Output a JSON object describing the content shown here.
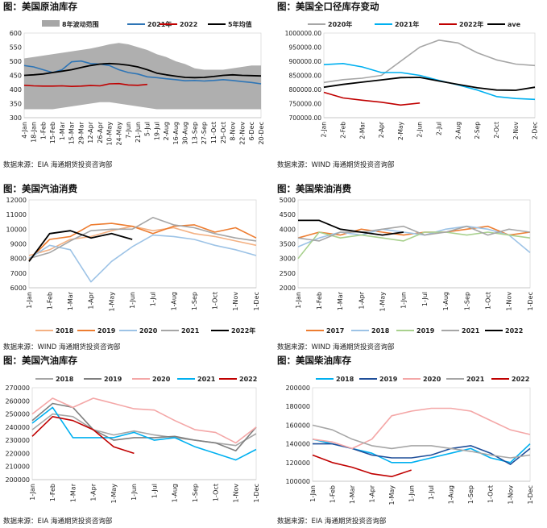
{
  "colors": {
    "gray": "#A6A6A6",
    "darkgray": "#7F7F7F",
    "blue": "#2E75B6",
    "red": "#C00000",
    "black": "#000000",
    "cyan": "#00B0F0",
    "orange": "#ED7D31",
    "lightorange": "#F4B183",
    "lightblue": "#9DC3E6",
    "lightgreen": "#A9D18E",
    "pink": "#F4A7A7",
    "darkblue": "#1F4E99",
    "band": "#A6A6A6"
  },
  "panels": [
    {
      "title": "图：美国原油库存",
      "source": "数据来源：EIA   海通期货投资咨询部",
      "chart_data": {
        "type": "line",
        "x": [
          "4-Jan",
          "18-Jan",
          "1-Feb",
          "15-Feb",
          "1-Mar",
          "15-Mar",
          "29-Mar",
          "12-Apr",
          "26-Apr",
          "10-May",
          "24-May",
          "7-Jun",
          "21-Jun",
          "5-Jul",
          "19-Jul",
          "2-Aug",
          "16-Aug",
          "30-Aug",
          "13-Sep",
          "27-Sep",
          "11-Oct",
          "25-Oct",
          "8-Nov",
          "22-Nov",
          "6-Dec",
          "20-Dec"
        ],
        "ylim": [
          300,
          600
        ],
        "yticks": [
          "300",
          "350",
          "400",
          "450",
          "500",
          "550",
          "600"
        ],
        "band": {
          "name": "8年波动范围",
          "upper": [
            510,
            515,
            520,
            525,
            530,
            535,
            540,
            545,
            552,
            560,
            565,
            560,
            550,
            540,
            525,
            515,
            500,
            490,
            475,
            470,
            470,
            470,
            475,
            480,
            485,
            485
          ],
          "lower": [
            330,
            330,
            330,
            330,
            335,
            340,
            345,
            350,
            355,
            355,
            350,
            345,
            340,
            335,
            330,
            330,
            330,
            330,
            330,
            330,
            330,
            330,
            330,
            330,
            330,
            330
          ]
        },
        "series": [
          {
            "name": "2021年",
            "color": "blue",
            "values": [
              485,
              480,
              470,
              460,
              470,
              498,
              501,
              492,
              490,
              485,
              470,
              460,
              455,
              445,
              442,
              438,
              435,
              431,
              432,
              430,
              432,
              435,
              432,
              428,
              425,
              420
            ]
          },
          {
            "name": "2022",
            "color": "red",
            "values": [
              415,
              413,
              412,
              412,
              413,
              411,
              412,
              414,
              413,
              420,
              421,
              416,
              415,
              418,
              null,
              null,
              null,
              null,
              null,
              null,
              null,
              null,
              null,
              null,
              null,
              null
            ]
          },
          {
            "name": "5年均值",
            "color": "black",
            "values": [
              450,
              452,
              455,
              460,
              465,
              470,
              478,
              485,
              490,
              492,
              490,
              486,
              480,
              470,
              458,
              452,
              447,
              443,
              442,
              443,
              446,
              450,
              452,
              450,
              449,
              448
            ]
          }
        ]
      }
    },
    {
      "title": "图：美国全口径库存变动",
      "source": "数据来源：WIND   海通期货投资咨询部",
      "chart_data": {
        "type": "line",
        "x": [
          "2-Jan",
          "2-Feb",
          "2-Mar",
          "2-Apr",
          "2-May",
          "2-Jun",
          "2-Jul",
          "2-Aug",
          "2-Sep",
          "2-Oct",
          "2-Nov",
          "2-Dec"
        ],
        "ylim": [
          700000,
          1000000
        ],
        "yticks": [
          "700000.00",
          "750000.00",
          "800000.00",
          "850000.00",
          "900000.00",
          "950000.00",
          "1000000.00"
        ],
        "series": [
          {
            "name": "2020年",
            "color": "gray",
            "values": [
              825000,
              835000,
              840000,
              850000,
              900000,
              950000,
              975000,
              965000,
              930000,
              905000,
              890000,
              885000
            ]
          },
          {
            "name": "2021年",
            "color": "cyan",
            "values": [
              888000,
              892000,
              880000,
              860000,
              860000,
              850000,
              832000,
              816000,
              798000,
              775000,
              768000,
              765000
            ]
          },
          {
            "name": "2022年",
            "color": "red",
            "values": [
              790000,
              770000,
              762000,
              755000,
              745000,
              752000,
              null,
              null,
              null,
              null,
              null,
              null
            ]
          },
          {
            "name": "ave",
            "color": "black",
            "values": [
              808000,
              818000,
              826000,
              834000,
              842000,
              843000,
              830000,
              818000,
              806000,
              798000,
              797000,
              808000
            ]
          }
        ]
      }
    },
    {
      "title": "图：美国汽油消费",
      "source": "数据来源：WIND   海通期货投资咨询部",
      "chart_data": {
        "type": "line",
        "x": [
          "1-Jan",
          "1-Feb",
          "1-Mar",
          "1-Apr",
          "1-May",
          "1-Jun",
          "1-Jul",
          "1-Aug",
          "1-Sep",
          "1-Oct",
          "1-Nov",
          "1-Dec"
        ],
        "ylim": [
          6000,
          12000
        ],
        "yticks": [
          "6000",
          "7000",
          "8000",
          "9000",
          "10000",
          "11000",
          "12000"
        ],
        "series": [
          {
            "name": "2018",
            "color": "lightorange",
            "values": [
              8200,
              8600,
              9300,
              9500,
              9900,
              10200,
              9900,
              10100,
              9700,
              9500,
              9200,
              8900
            ]
          },
          {
            "name": "2019",
            "color": "orange",
            "values": [
              7900,
              9300,
              9500,
              10300,
              10400,
              10200,
              9700,
              10200,
              10300,
              9800,
              10100,
              9400
            ]
          },
          {
            "name": "2020",
            "color": "lightblue",
            "values": [
              8000,
              8900,
              8600,
              6400,
              7800,
              8800,
              9600,
              9500,
              9300,
              8900,
              8600,
              8200
            ]
          },
          {
            "name": "2021",
            "color": "gray",
            "values": [
              8000,
              8400,
              9200,
              9900,
              10000,
              10000,
              10800,
              10300,
              10100,
              9700,
              9400,
              9200
            ]
          },
          {
            "name": "2022年",
            "color": "black",
            "values": [
              7800,
              9700,
              9900,
              9400,
              9700,
              9300,
              null,
              null,
              null,
              null,
              null,
              null
            ]
          }
        ]
      }
    },
    {
      "title": "图：美国柴油消费",
      "source": "数据来源：WIND   海通期货投资咨询部",
      "chart_data": {
        "type": "line",
        "x": [
          "1-Jan",
          "1-Feb",
          "1-Mar",
          "1-Apr",
          "1-May",
          "1-Jun",
          "1-Jul",
          "1-Aug",
          "1-Sep",
          "1-Oct",
          "1-Nov",
          "1-Dec"
        ],
        "ylim": [
          2000,
          5000
        ],
        "yticks": [
          "2000",
          "2500",
          "3000",
          "3500",
          "4000",
          "4500",
          "5000"
        ],
        "series": [
          {
            "name": "2017",
            "color": "orange",
            "values": [
              3700,
              3900,
              3800,
              4000,
              3900,
              3800,
              3900,
              3900,
              4000,
              4100,
              3800,
              3900
            ]
          },
          {
            "name": "2018",
            "color": "lightblue",
            "values": [
              3400,
              3700,
              3900,
              3800,
              4000,
              3900,
              3800,
              4000,
              4100,
              4000,
              3800,
              3200
            ]
          },
          {
            "name": "2019",
            "color": "lightgreen",
            "values": [
              3000,
              3900,
              3700,
              3800,
              3700,
              3600,
              3900,
              3900,
              3800,
              3900,
              3800,
              3700
            ]
          },
          {
            "name": "2021",
            "color": "gray",
            "values": [
              3700,
              3600,
              3900,
              3900,
              4000,
              4100,
              3800,
              3900,
              4100,
              3800,
              4000,
              3900
            ]
          },
          {
            "name": "2022",
            "color": "black",
            "values": [
              4300,
              4300,
              4000,
              3900,
              3800,
              3900,
              null,
              null,
              null,
              null,
              null,
              null
            ]
          }
        ]
      }
    },
    {
      "title": "图：美国汽油库存",
      "source": "数据来源：EIA   海通期货投资咨询部",
      "chart_data": {
        "type": "line",
        "x": [
          "1-Jan",
          "1-Feb",
          "1-Mar",
          "1-Apr",
          "1-May",
          "1-Jun",
          "1-Jul",
          "1-Aug",
          "1-Sep",
          "1-Oct",
          "1-Nov",
          "1-Dec"
        ],
        "ylim": [
          200000,
          270000
        ],
        "yticks": [
          "200000",
          "210000",
          "220000",
          "230000",
          "240000",
          "250000",
          "260000",
          "270000"
        ],
        "series": [
          {
            "name": "2018",
            "color": "gray",
            "values": [
              238000,
              250000,
              248000,
              238000,
              234000,
              237000,
              234000,
              232000,
              230000,
              228000,
              226000,
              235000
            ]
          },
          {
            "name": "2019",
            "color": "darkgray",
            "values": [
              245000,
              258000,
              255000,
              238000,
              230000,
              232000,
              232000,
              233000,
              230000,
              228000,
              222000,
              240000
            ]
          },
          {
            "name": "2020",
            "color": "pink",
            "values": [
              250000,
              262000,
              255000,
              262000,
              258000,
              254000,
              253000,
              245000,
              238000,
              236000,
              228000,
              240000
            ]
          },
          {
            "name": "2021",
            "color": "cyan",
            "values": [
              243000,
              255000,
              232000,
              232000,
              232000,
              236000,
              230000,
              232000,
              225000,
              220000,
              215000,
              223000
            ]
          },
          {
            "name": "2022",
            "color": "red",
            "values": [
              233000,
              248000,
              245000,
              238000,
              225000,
              220000,
              null,
              null,
              null,
              null,
              null,
              null
            ]
          }
        ]
      }
    },
    {
      "title": "图：美国柴油库存",
      "source": "数据来源：EIA   海通期货投资咨询部",
      "chart_data": {
        "type": "line",
        "x": [
          "1-Jan",
          "1-Feb",
          "1-Mar",
          "1-Apr",
          "1-May",
          "1-Jun",
          "1-Jul",
          "1-Aug",
          "1-Sep",
          "1-Oct",
          "1-Nov",
          "1-Dec"
        ],
        "ylim": [
          100000,
          200000
        ],
        "yticks": [
          "100000",
          "120000",
          "140000",
          "160000",
          "180000",
          "200000"
        ],
        "series": [
          {
            "name": "2018",
            "color": "cyan",
            "values": [
              145000,
              140000,
              135000,
              130000,
              120000,
              120000,
              125000,
              130000,
              135000,
              125000,
              120000,
              140000
            ]
          },
          {
            "name": "2019",
            "color": "darkblue",
            "values": [
              140000,
              140000,
              135000,
              128000,
              125000,
              125000,
              128000,
              135000,
              138000,
              130000,
              118000,
              135000
            ]
          },
          {
            "name": "2020",
            "color": "pink",
            "values": [
              145000,
              142000,
              135000,
              145000,
              170000,
              175000,
              178000,
              178000,
              175000,
              165000,
              155000,
              150000
            ]
          },
          {
            "name": "2021",
            "color": "gray",
            "values": [
              160000,
              155000,
              145000,
              138000,
              135000,
              138000,
              138000,
              135000,
              132000,
              128000,
              125000,
              128000
            ]
          },
          {
            "name": "2022",
            "color": "red",
            "values": [
              128000,
              120000,
              115000,
              108000,
              105000,
              112000,
              null,
              null,
              null,
              null,
              null,
              null
            ]
          }
        ]
      }
    }
  ]
}
